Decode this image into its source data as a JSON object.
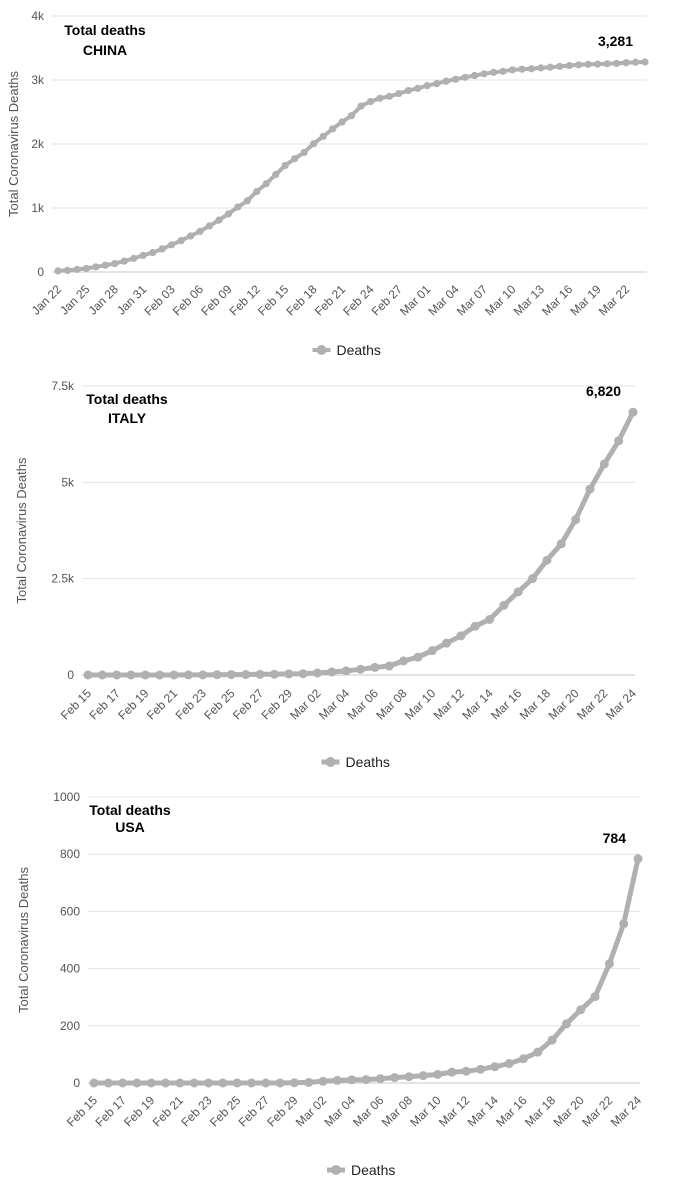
{
  "chart_data": [
    {
      "type": "line",
      "title_line1": "Total deaths",
      "title_line2": "CHINA",
      "ylabel": "Total Coronavirus Deaths",
      "ylim": [
        0,
        4000
      ],
      "yticks": [
        0,
        1000,
        2000,
        3000,
        4000
      ],
      "ytick_labels": [
        "0",
        "1k",
        "2k",
        "3k",
        "4k"
      ],
      "categories": [
        "Jan 22",
        "Jan 23",
        "Jan 24",
        "Jan 25",
        "Jan 26",
        "Jan 27",
        "Jan 28",
        "Jan 29",
        "Jan 30",
        "Jan 31",
        "Feb 01",
        "Feb 02",
        "Feb 03",
        "Feb 04",
        "Feb 05",
        "Feb 06",
        "Feb 07",
        "Feb 08",
        "Feb 09",
        "Feb 10",
        "Feb 11",
        "Feb 12",
        "Feb 13",
        "Feb 14",
        "Feb 15",
        "Feb 16",
        "Feb 17",
        "Feb 18",
        "Feb 19",
        "Feb 20",
        "Feb 21",
        "Feb 22",
        "Feb 23",
        "Feb 24",
        "Feb 25",
        "Feb 26",
        "Feb 27",
        "Feb 28",
        "Feb 29",
        "Mar 01",
        "Mar 02",
        "Mar 03",
        "Mar 04",
        "Mar 05",
        "Mar 06",
        "Mar 07",
        "Mar 08",
        "Mar 09",
        "Mar 10",
        "Mar 11",
        "Mar 12",
        "Mar 13",
        "Mar 14",
        "Mar 15",
        "Mar 16",
        "Mar 17",
        "Mar 18",
        "Mar 19",
        "Mar 20",
        "Mar 21",
        "Mar 22",
        "Mar 23",
        "Mar 24"
      ],
      "xtick_labels": [
        "Jan 22",
        "Jan 25",
        "Jan 28",
        "Jan 31",
        "Feb 03",
        "Feb 06",
        "Feb 09",
        "Feb 12",
        "Feb 15",
        "Feb 18",
        "Feb 21",
        "Feb 24",
        "Feb 27",
        "Mar 01",
        "Mar 04",
        "Mar 07",
        "Mar 10",
        "Mar 13",
        "Mar 16",
        "Mar 19",
        "Mar 22"
      ],
      "xtick_step": 3,
      "series": [
        {
          "name": "Deaths",
          "values": [
            17,
            25,
            41,
            56,
            80,
            106,
            132,
            170,
            213,
            259,
            304,
            361,
            425,
            490,
            562,
            636,
            722,
            811,
            908,
            1016,
            1113,
            1259,
            1380,
            1523,
            1665,
            1770,
            1868,
            2004,
            2118,
            2236,
            2345,
            2442,
            2592,
            2663,
            2715,
            2744,
            2788,
            2835,
            2870,
            2912,
            2943,
            2981,
            3012,
            3042,
            3070,
            3097,
            3119,
            3136,
            3158,
            3169,
            3176,
            3189,
            3199,
            3213,
            3226,
            3237,
            3245,
            3249,
            3253,
            3259,
            3270,
            3277,
            3281
          ],
          "color": "#b0b0b0"
        }
      ],
      "data_label": "3,281",
      "legend": "Deaths",
      "grid": true
    },
    {
      "type": "line",
      "title_line1": "Total deaths",
      "title_line2": "ITALY",
      "ylabel": "Total Coronavirus Deaths",
      "ylim": [
        0,
        7500
      ],
      "yticks": [
        0,
        2500,
        5000,
        7500
      ],
      "ytick_labels": [
        "0",
        "2.5k",
        "5k",
        "7.5k"
      ],
      "categories": [
        "Feb 15",
        "Feb 16",
        "Feb 17",
        "Feb 18",
        "Feb 19",
        "Feb 20",
        "Feb 21",
        "Feb 22",
        "Feb 23",
        "Feb 24",
        "Feb 25",
        "Feb 26",
        "Feb 27",
        "Feb 28",
        "Feb 29",
        "Mar 01",
        "Mar 02",
        "Mar 03",
        "Mar 04",
        "Mar 05",
        "Mar 06",
        "Mar 07",
        "Mar 08",
        "Mar 09",
        "Mar 10",
        "Mar 11",
        "Mar 12",
        "Mar 13",
        "Mar 14",
        "Mar 15",
        "Mar 16",
        "Mar 17",
        "Mar 18",
        "Mar 19",
        "Mar 20",
        "Mar 21",
        "Mar 22",
        "Mar 23",
        "Mar 24"
      ],
      "xtick_labels": [
        "Feb 15",
        "Feb 17",
        "Feb 19",
        "Feb 21",
        "Feb 23",
        "Feb 25",
        "Feb 27",
        "Feb 29",
        "Mar 02",
        "Mar 04",
        "Mar 06",
        "Mar 08",
        "Mar 10",
        "Mar 12",
        "Mar 14",
        "Mar 16",
        "Mar 18",
        "Mar 20",
        "Mar 22",
        "Mar 24"
      ],
      "xtick_step": 2,
      "series": [
        {
          "name": "Deaths",
          "values": [
            0,
            0,
            0,
            0,
            0,
            0,
            1,
            2,
            3,
            7,
            10,
            12,
            17,
            21,
            29,
            34,
            52,
            79,
            107,
            148,
            197,
            233,
            366,
            463,
            631,
            827,
            1016,
            1266,
            1441,
            1809,
            2158,
            2503,
            2978,
            3405,
            4032,
            4825,
            5476,
            6077,
            6820
          ],
          "color": "#b0b0b0"
        }
      ],
      "data_label": "6,820",
      "legend": "Deaths",
      "grid": true
    },
    {
      "type": "line",
      "title_line1": "Total deaths",
      "title_line2": "USA",
      "ylabel": "Total Coronavirus Deaths",
      "ylim": [
        0,
        1000
      ],
      "yticks": [
        0,
        200,
        400,
        600,
        800,
        1000
      ],
      "ytick_labels": [
        "0",
        "200",
        "400",
        "600",
        "800",
        "1000"
      ],
      "categories": [
        "Feb 15",
        "Feb 16",
        "Feb 17",
        "Feb 18",
        "Feb 19",
        "Feb 20",
        "Feb 21",
        "Feb 22",
        "Feb 23",
        "Feb 24",
        "Feb 25",
        "Feb 26",
        "Feb 27",
        "Feb 28",
        "Feb 29",
        "Mar 01",
        "Mar 02",
        "Mar 03",
        "Mar 04",
        "Mar 05",
        "Mar 06",
        "Mar 07",
        "Mar 08",
        "Mar 09",
        "Mar 10",
        "Mar 11",
        "Mar 12",
        "Mar 13",
        "Mar 14",
        "Mar 15",
        "Mar 16",
        "Mar 17",
        "Mar 18",
        "Mar 19",
        "Mar 20",
        "Mar 21",
        "Mar 22",
        "Mar 23",
        "Mar 24"
      ],
      "xtick_labels": [
        "Feb 15",
        "Feb 17",
        "Feb 19",
        "Feb 21",
        "Feb 23",
        "Feb 25",
        "Feb 27",
        "Feb 29",
        "Mar 02",
        "Mar 04",
        "Mar 06",
        "Mar 08",
        "Mar 10",
        "Mar 12",
        "Mar 14",
        "Mar 16",
        "Mar 18",
        "Mar 20",
        "Mar 22",
        "Mar 24"
      ],
      "xtick_step": 2,
      "series": [
        {
          "name": "Deaths",
          "values": [
            0,
            0,
            0,
            0,
            0,
            0,
            0,
            0,
            0,
            0,
            0,
            0,
            0,
            0,
            1,
            2,
            6,
            9,
            11,
            12,
            15,
            19,
            22,
            26,
            30,
            38,
            41,
            48,
            57,
            68,
            85,
            108,
            150,
            207,
            256,
            302,
            417,
            557,
            784
          ],
          "color": "#b0b0b0"
        }
      ],
      "data_label": "784",
      "legend": "Deaths",
      "grid": true
    }
  ]
}
